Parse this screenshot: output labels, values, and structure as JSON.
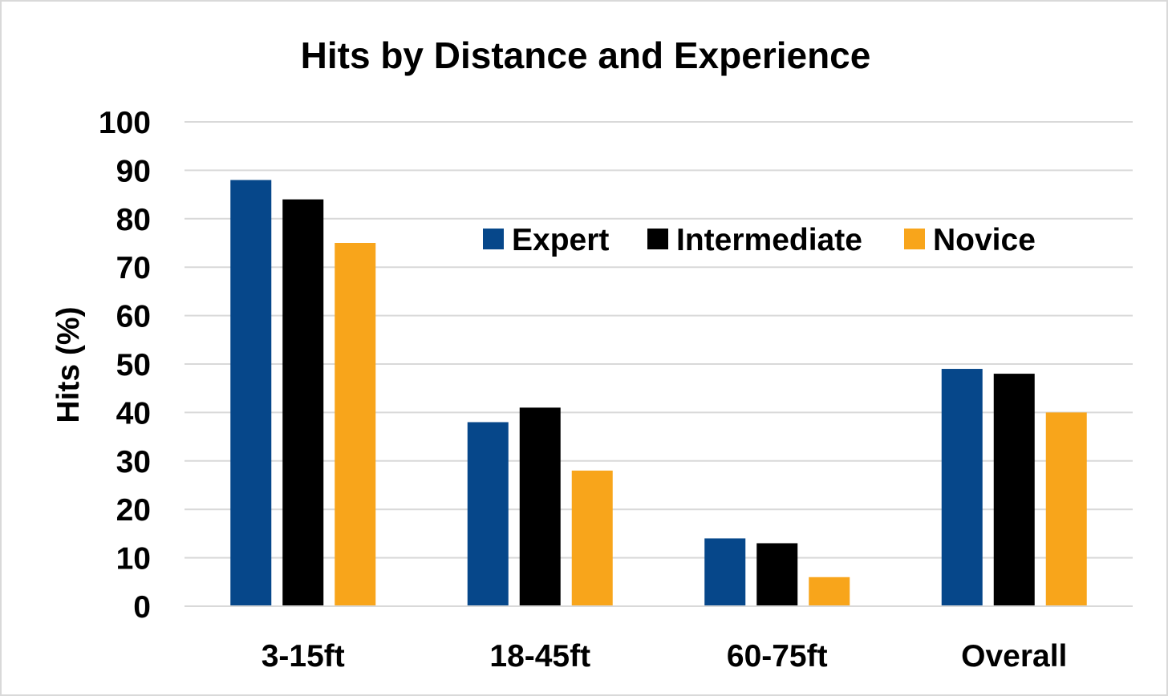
{
  "chart_data": {
    "type": "bar",
    "title": "Hits by Distance and Experience",
    "xlabel": "",
    "ylabel": "Hits (%)",
    "ylim": [
      0,
      100
    ],
    "yticks": [
      "0",
      "10",
      "20",
      "30",
      "40",
      "50",
      "60",
      "70",
      "80",
      "90",
      "100"
    ],
    "categories": [
      "3-15ft",
      "18-45ft",
      "60-75ft",
      "Overall"
    ],
    "series": [
      {
        "name": "Expert",
        "color": "#06478a",
        "values": [
          88,
          38,
          14,
          49
        ]
      },
      {
        "name": "Intermediate",
        "color": "#000000",
        "values": [
          84,
          41,
          13,
          48
        ]
      },
      {
        "name": "Novice",
        "color": "#f8a51b",
        "values": [
          75,
          28,
          6,
          40
        ]
      }
    ],
    "grid": true,
    "gridline_color": "#d9d9d9",
    "legend_position": "top-right-inside"
  }
}
